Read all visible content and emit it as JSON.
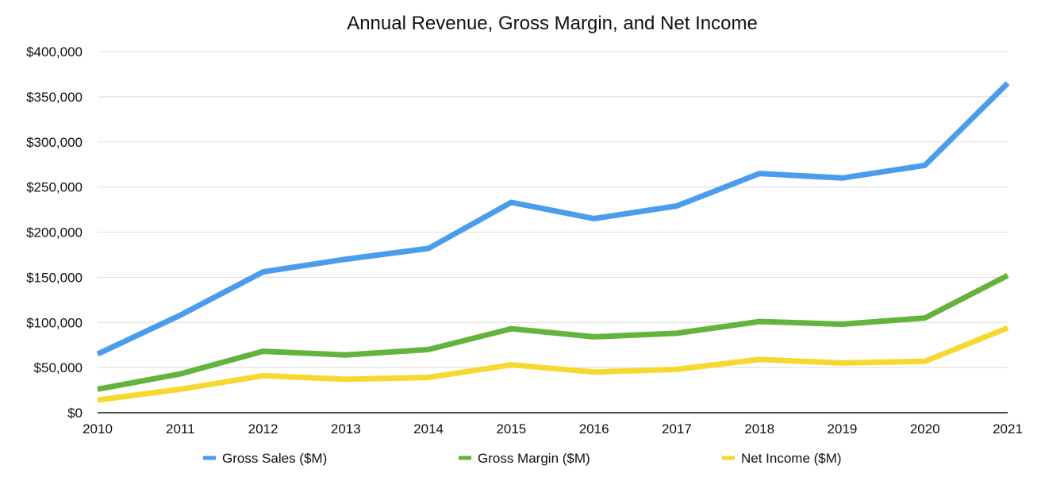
{
  "chart_data": {
    "type": "line",
    "title": "Annual Revenue, Gross Margin, and Net Income",
    "xlabel": "",
    "ylabel": "",
    "x": [
      "2010",
      "2011",
      "2012",
      "2013",
      "2014",
      "2015",
      "2016",
      "2017",
      "2018",
      "2019",
      "2020",
      "2021"
    ],
    "ylim": [
      0,
      400000
    ],
    "yticks": [
      0,
      50000,
      100000,
      150000,
      200000,
      250000,
      300000,
      350000,
      400000
    ],
    "ytick_labels": [
      "$0",
      "$50,000",
      "$100,000",
      "$150,000",
      "$200,000",
      "$250,000",
      "$300,000",
      "$350,000",
      "$400,000"
    ],
    "grid": true,
    "legend_position": "bottom",
    "series": [
      {
        "name": "Gross Sales ($M)",
        "color": "#4a9cec",
        "values": [
          65000,
          108000,
          156000,
          170000,
          182000,
          233000,
          215000,
          229000,
          265000,
          260000,
          274000,
          365000
        ]
      },
      {
        "name": "Gross Margin ($M)",
        "color": "#63b33d",
        "values": [
          26000,
          43000,
          68000,
          64000,
          70000,
          93000,
          84000,
          88000,
          101000,
          98000,
          105000,
          152000
        ]
      },
      {
        "name": "Net Income ($M)",
        "color": "#f5d931",
        "values": [
          14000,
          26000,
          41000,
          37000,
          39000,
          53000,
          45000,
          48000,
          59000,
          55000,
          57000,
          94000
        ]
      }
    ]
  }
}
